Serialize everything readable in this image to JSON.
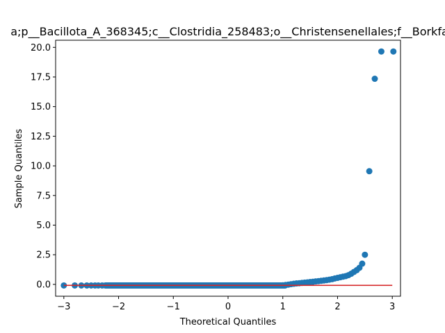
{
  "chart_data": {
    "type": "scatter",
    "title": "a;p__Bacillota_A_368345;c__Clostridia_258483;o__Christensenellales;f__Borkfa",
    "xlabel": "Theoretical Quantiles",
    "ylabel": "Sample Quantiles",
    "xlim": [
      -3.15,
      3.15
    ],
    "ylim": [
      -1.0,
      20.6
    ],
    "x_ticks": [
      -3,
      -2,
      -1,
      0,
      1,
      2,
      3
    ],
    "y_ticks": [
      0.0,
      2.5,
      5.0,
      7.5,
      10.0,
      12.5,
      15.0,
      17.5,
      20.0
    ],
    "x_tick_labels": [
      "−3",
      "−2",
      "−1",
      "0",
      "1",
      "2",
      "3"
    ],
    "y_tick_labels": [
      "0.0",
      "2.5",
      "5.0",
      "7.5",
      "10.0",
      "12.5",
      "15.0",
      "17.5",
      "20.0"
    ],
    "grid": false,
    "marker_color": "#1f77b4",
    "reference_line": {
      "x": [
        -3.0,
        3.0
      ],
      "y": [
        -0.08,
        -0.08
      ],
      "color": "#d62728"
    },
    "points": {
      "x": [
        -3.0,
        -2.8,
        -2.68,
        -2.58,
        -2.5,
        -2.43,
        -2.37,
        -2.3,
        -2.2,
        -2.1,
        -2.0,
        -1.8,
        -1.6,
        -1.4,
        -1.2,
        -1.0,
        -0.8,
        -0.6,
        -0.4,
        -0.2,
        0.0,
        0.2,
        0.4,
        0.6,
        0.8,
        1.0,
        1.05,
        1.1,
        1.15,
        1.2,
        1.25,
        1.3,
        1.35,
        1.4,
        1.45,
        1.5,
        1.55,
        1.6,
        1.65,
        1.7,
        1.75,
        1.8,
        1.85,
        1.9,
        1.95,
        2.0,
        2.05,
        2.1,
        2.15,
        2.2,
        2.25,
        2.3,
        2.35,
        2.4,
        2.45,
        2.5,
        2.58,
        2.68,
        2.8,
        3.02
      ],
      "y": [
        -0.09,
        -0.09,
        -0.09,
        -0.09,
        -0.09,
        -0.09,
        -0.09,
        -0.09,
        -0.09,
        -0.09,
        -0.09,
        -0.09,
        -0.09,
        -0.09,
        -0.09,
        -0.09,
        -0.09,
        -0.09,
        -0.09,
        -0.09,
        -0.09,
        -0.09,
        -0.09,
        -0.09,
        -0.09,
        -0.08,
        -0.05,
        -0.02,
        0.02,
        0.05,
        0.08,
        0.1,
        0.13,
        0.15,
        0.17,
        0.2,
        0.22,
        0.25,
        0.27,
        0.3,
        0.33,
        0.36,
        0.4,
        0.44,
        0.5,
        0.55,
        0.6,
        0.65,
        0.7,
        0.78,
        0.9,
        1.05,
        1.2,
        1.4,
        1.75,
        2.5,
        9.55,
        17.35,
        19.65,
        19.65
      ]
    }
  }
}
